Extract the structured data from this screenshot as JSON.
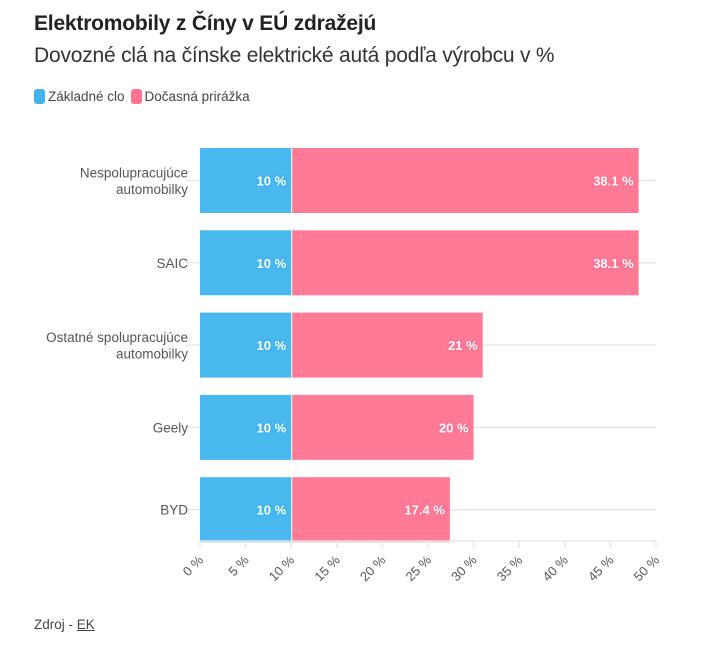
{
  "header": {
    "title": "Elektromobily z Číny v EÚ zdražejú",
    "subtitle": "Dovozné clá na čínske elektrické autá podľa výrobcu v %"
  },
  "legend": [
    {
      "label": "Základné clo",
      "color": "#3fb4ee"
    },
    {
      "label": "Dočasná prirážka",
      "color": "#ff7391"
    }
  ],
  "footer": {
    "source_prefix": "Zdroj - ",
    "source_link": "EK"
  },
  "chart_data": {
    "type": "bar",
    "orientation": "horizontal",
    "stacked": true,
    "title": "Elektromobily z Číny v EÚ zdražejú",
    "subtitle": "Dovozné clá na čínske elektrické autá podľa výrobcu v %",
    "categories": [
      [
        "Nespolupracujúce",
        "automobilky"
      ],
      [
        "SAIC"
      ],
      [
        "Ostatné spolupracujúce",
        "automobilky"
      ],
      [
        "Geely"
      ],
      [
        "BYD"
      ]
    ],
    "series": [
      {
        "name": "Základné clo",
        "color": "#3fb4ee",
        "values": [
          10,
          10,
          10,
          10,
          10
        ],
        "labels": [
          "10 %",
          "10 %",
          "10 %",
          "10 %",
          "10 %"
        ]
      },
      {
        "name": "Dočasná prirážka",
        "color": "#ff7391",
        "values": [
          38.1,
          38.1,
          21,
          20,
          17.4
        ],
        "labels": [
          "38.1 %",
          "38.1 %",
          "21 %",
          "20 %",
          "17.4 %"
        ]
      }
    ],
    "xlim": [
      0,
      50
    ],
    "xticks": [
      0,
      5,
      10,
      15,
      20,
      25,
      30,
      35,
      40,
      45,
      50
    ],
    "xtick_labels": [
      "0 %",
      "5 %",
      "10 %",
      "15 %",
      "20 %",
      "25 %",
      "30 %",
      "35 %",
      "40 %",
      "45 %",
      "50 %"
    ],
    "xlabel": "",
    "ylabel": "",
    "grid": true,
    "legend_position": "top-left"
  }
}
